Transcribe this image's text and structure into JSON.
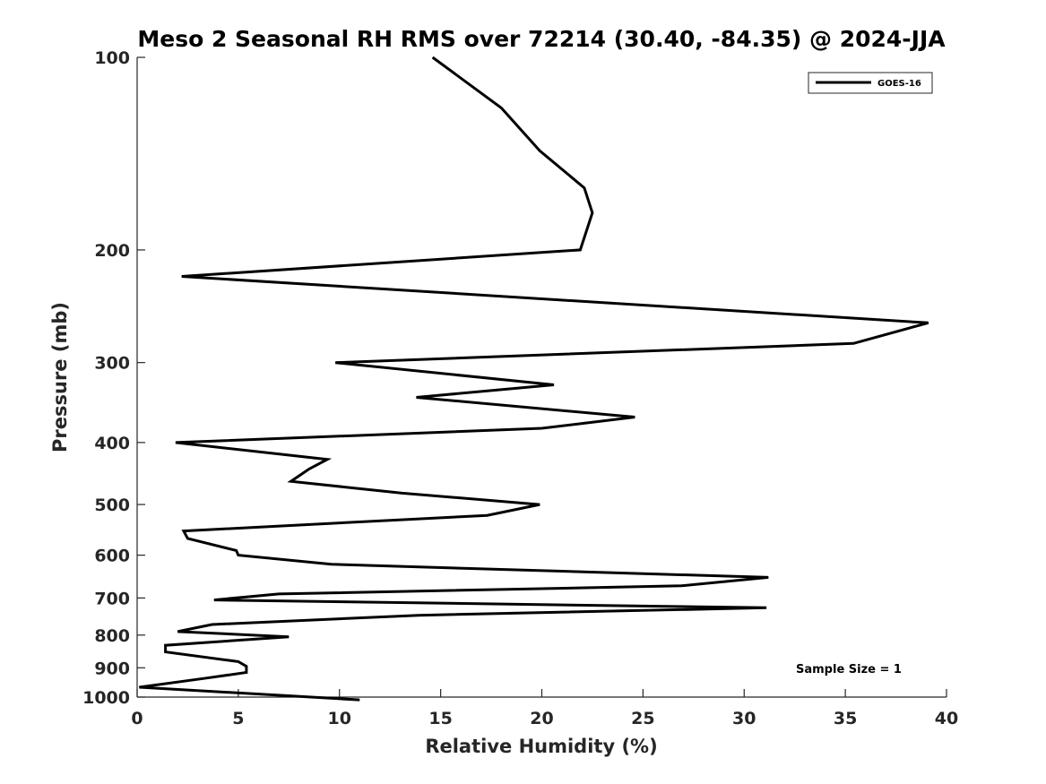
{
  "chart_data": {
    "type": "line",
    "title": "Meso 2 Seasonal RH RMS over 72214 (30.40, -84.35) @ 2024-JJA",
    "xlabel": "Relative Humidity (%)",
    "ylabel": "Pressure (mb)",
    "xlim": [
      0,
      40
    ],
    "ylim": [
      1000,
      100
    ],
    "y_scale": "log",
    "x_ticks": [
      0,
      5,
      10,
      15,
      20,
      25,
      30,
      35,
      40
    ],
    "y_ticks": [
      100,
      200,
      300,
      400,
      500,
      600,
      700,
      800,
      900,
      1000
    ],
    "grid": false,
    "legend_position": "top-right",
    "annotation": "Sample Size = 1",
    "line_color": "#000000",
    "series": [
      {
        "name": "GOES-16",
        "x": [
          14.6,
          18.0,
          19.9,
          22.1,
          22.5,
          21.9,
          2.2,
          39.1,
          35.4,
          9.8,
          20.6,
          13.8,
          24.6,
          20.0,
          1.9,
          9.4,
          8.5,
          7.6,
          13.1,
          19.9,
          17.3,
          2.3,
          2.5,
          4.9,
          5.0,
          9.6,
          31.2,
          26.9,
          7.0,
          3.8,
          31.1,
          13.9,
          3.7,
          2.0,
          7.5,
          1.4,
          1.4,
          5.0,
          5.4,
          5.4,
          3.3,
          0.1,
          11.0
        ],
        "y": [
          100,
          120,
          140,
          160,
          175,
          200,
          220,
          260,
          280,
          300,
          325,
          340,
          365,
          380,
          400,
          425,
          440,
          460,
          480,
          500,
          520,
          550,
          565,
          590,
          600,
          620,
          650,
          670,
          690,
          705,
          725,
          745,
          770,
          790,
          805,
          830,
          850,
          880,
          895,
          915,
          935,
          965,
          1010
        ]
      }
    ]
  }
}
